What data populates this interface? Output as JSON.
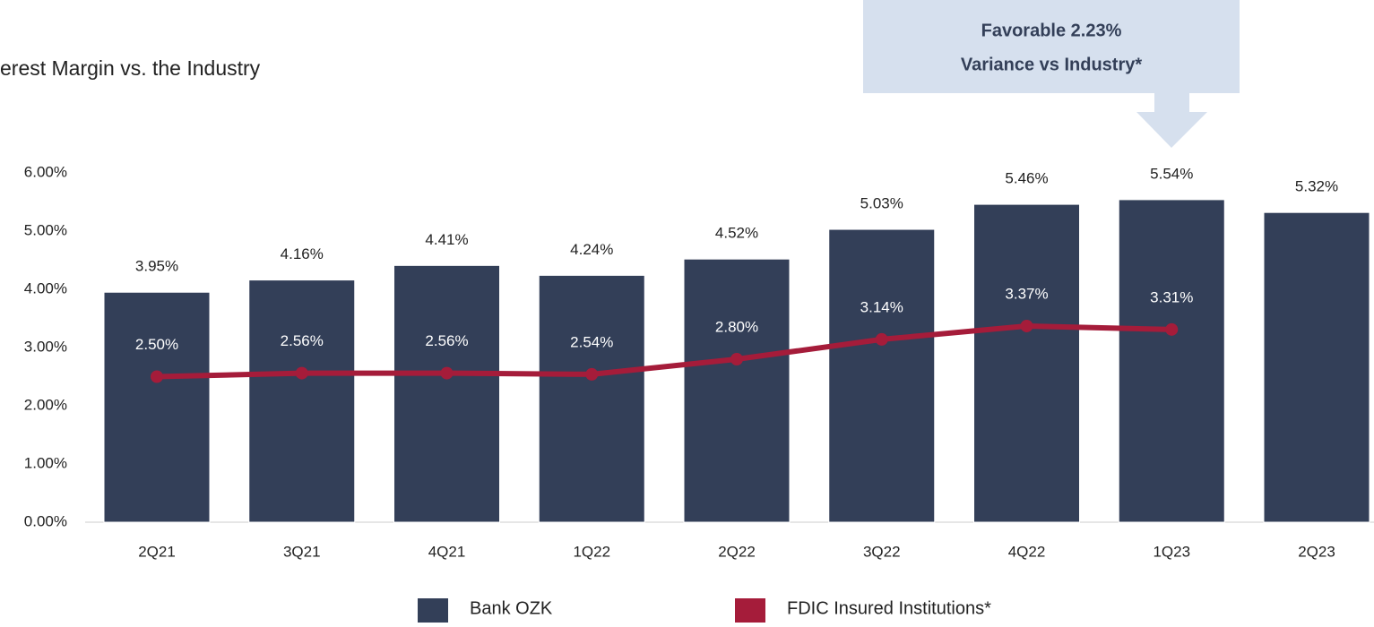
{
  "chart_data": {
    "type": "bar_line",
    "title": "erest Margin vs. the Industry",
    "annotation": [
      "Favorable 2.23%",
      "Variance vs Industry*"
    ],
    "categories": [
      "2Q21",
      "3Q21",
      "4Q21",
      "1Q22",
      "2Q22",
      "3Q22",
      "4Q22",
      "1Q23",
      "2Q23"
    ],
    "series": [
      {
        "name": "Bank OZK",
        "type": "bar",
        "color": "#333f58",
        "values": [
          3.95,
          4.16,
          4.41,
          4.24,
          4.52,
          5.03,
          5.46,
          5.54,
          5.32
        ],
        "value_labels": [
          "3.95%",
          "4.16%",
          "4.41%",
          "4.24%",
          "4.52%",
          "5.03%",
          "5.46%",
          "5.54%",
          "5.32%"
        ]
      },
      {
        "name": "FDIC Insured Institutions*",
        "type": "line",
        "color": "#a51c3a",
        "values": [
          2.5,
          2.56,
          2.56,
          2.54,
          2.8,
          3.14,
          3.37,
          3.31,
          null
        ],
        "value_labels": [
          "2.50%",
          "2.56%",
          "2.56%",
          "2.54%",
          "2.80%",
          "3.14%",
          "3.37%",
          "3.31%",
          null
        ]
      }
    ],
    "ylim": [
      0,
      6
    ],
    "yticks": [
      {
        "value": 0,
        "label": "0.00%"
      },
      {
        "value": 1,
        "label": "1.00%"
      },
      {
        "value": 2,
        "label": "2.00%"
      },
      {
        "value": 3,
        "label": "3.00%"
      },
      {
        "value": 4,
        "label": "4.00%"
      },
      {
        "value": 5,
        "label": "5.00%"
      },
      {
        "value": 6,
        "label": "6.00%"
      }
    ],
    "legend": "bottom"
  }
}
